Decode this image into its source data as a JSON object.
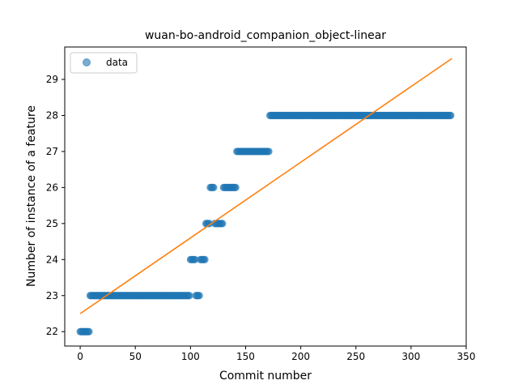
{
  "chart_data": {
    "type": "scatter",
    "title": "wuan-bo-android_companion_object-linear",
    "xlabel": "Commit number",
    "ylabel": "Number of instance of a feature",
    "xlim": [
      -14,
      350
    ],
    "ylim": [
      21.6,
      29.9
    ],
    "x_ticks": [
      0,
      50,
      100,
      150,
      200,
      250,
      300,
      350
    ],
    "y_ticks": [
      22,
      23,
      24,
      25,
      26,
      27,
      28,
      29
    ],
    "grid": false,
    "legend": {
      "position": "top-left",
      "entries": [
        "data"
      ]
    },
    "colors": {
      "data": "#1f77b4",
      "fit": "#ff7f0e"
    },
    "series": [
      {
        "name": "data",
        "kind": "points",
        "segments": [
          {
            "x_start": 0,
            "x_end": 9,
            "y": 22
          },
          {
            "x_start": 9,
            "x_end": 100,
            "y": 23
          },
          {
            "x_start": 100,
            "x_end": 105,
            "y": 24
          },
          {
            "x_start": 105,
            "x_end": 109,
            "y": 23
          },
          {
            "x_start": 109,
            "x_end": 114,
            "y": 24
          },
          {
            "x_start": 114,
            "x_end": 118,
            "y": 25
          },
          {
            "x_start": 118,
            "x_end": 122,
            "y": 26
          },
          {
            "x_start": 122,
            "x_end": 130,
            "y": 25
          },
          {
            "x_start": 130,
            "x_end": 142,
            "y": 26
          },
          {
            "x_start": 142,
            "x_end": 172,
            "y": 27
          },
          {
            "x_start": 172,
            "x_end": 337,
            "y": 28
          }
        ]
      },
      {
        "kind": "line",
        "x": [
          0,
          337
        ],
        "y": [
          22.5,
          29.58
        ]
      }
    ]
  }
}
